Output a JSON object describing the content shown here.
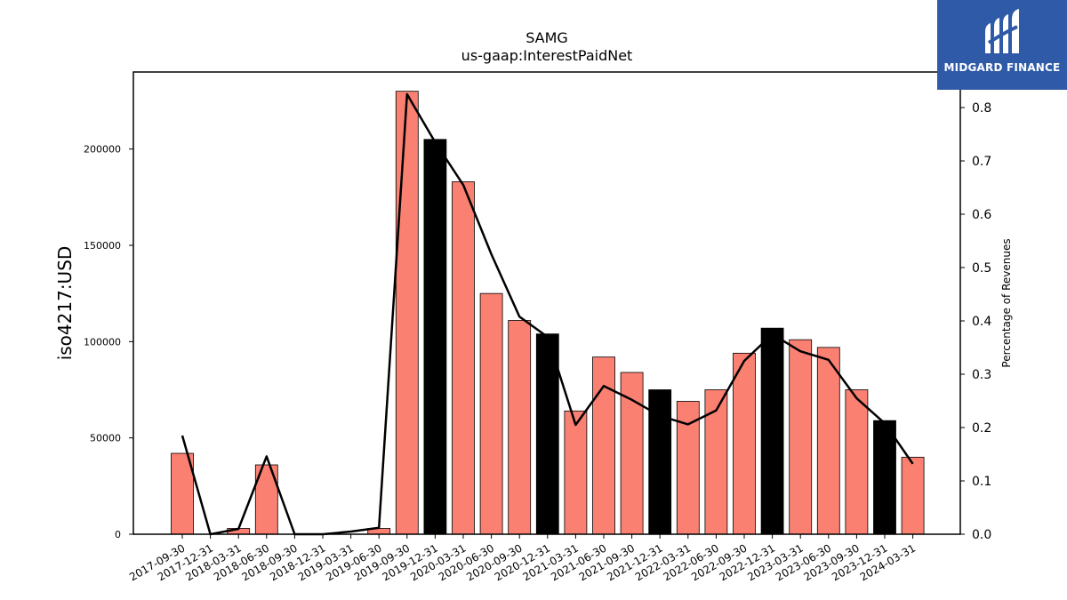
{
  "chart_data": {
    "type": "bar",
    "title": "SAMG",
    "subtitle": "us-gaap:InterestPaidNet",
    "ylabel": "iso4217:USD",
    "y2label": "Percentage of Revenues",
    "ylim": [
      0,
      240000
    ],
    "y2lim": [
      0,
      0.8667
    ],
    "yticks": [
      "0",
      "50000",
      "100000",
      "150000",
      "200000"
    ],
    "y2ticks": [
      "0.0",
      "0.1",
      "0.2",
      "0.3",
      "0.4",
      "0.5",
      "0.6",
      "0.7",
      "0.8"
    ],
    "categories": [
      "2017-09-30",
      "2017-12-31",
      "2018-03-31",
      "2018-06-30",
      "2018-09-30",
      "2018-12-31",
      "2019-03-31",
      "2019-06-30",
      "2019-09-30",
      "2019-12-31",
      "2020-03-31",
      "2020-06-30",
      "2020-09-30",
      "2020-12-31",
      "2021-03-31",
      "2021-06-30",
      "2021-09-30",
      "2021-12-31",
      "2022-03-31",
      "2022-06-30",
      "2022-09-30",
      "2022-12-31",
      "2023-03-31",
      "2023-06-30",
      "2023-09-30",
      "2023-12-31",
      "2024-03-31"
    ],
    "series": [
      {
        "type": "bar",
        "values": [
          42000,
          0,
          3000,
          36000,
          0,
          0,
          0,
          3000,
          230000,
          205000,
          183000,
          125000,
          111000,
          104000,
          64000,
          92000,
          84000,
          75000,
          69000,
          75000,
          94000,
          107000,
          101000,
          97000,
          75000,
          59000,
          40000
        ],
        "colors": [
          "#fa8072",
          "#fa8072",
          "#fa8072",
          "#fa8072",
          "#fa8072",
          "#fa8072",
          "#fa8072",
          "#fa8072",
          "#fa8072",
          "#000000",
          "#fa8072",
          "#fa8072",
          "#fa8072",
          "#000000",
          "#fa8072",
          "#fa8072",
          "#fa8072",
          "#000000",
          "#fa8072",
          "#fa8072",
          "#fa8072",
          "#000000",
          "#fa8072",
          "#fa8072",
          "#fa8072",
          "#000000",
          "#fa8072"
        ]
      },
      {
        "type": "line",
        "axis": "right",
        "values": [
          0.185,
          0.0,
          0.01,
          0.146,
          0.0,
          0.0,
          0.005,
          0.012,
          0.825,
          0.735,
          0.655,
          0.525,
          0.408,
          0.37,
          0.205,
          0.278,
          0.252,
          0.222,
          0.206,
          0.232,
          0.325,
          0.375,
          0.343,
          0.327,
          0.255,
          0.208,
          0.132
        ],
        "color": "#000000"
      }
    ],
    "grid": false,
    "legend": "none"
  },
  "logo": {
    "text": "MIDGARD FINANCE",
    "bg_color": "#2f5aa8"
  }
}
